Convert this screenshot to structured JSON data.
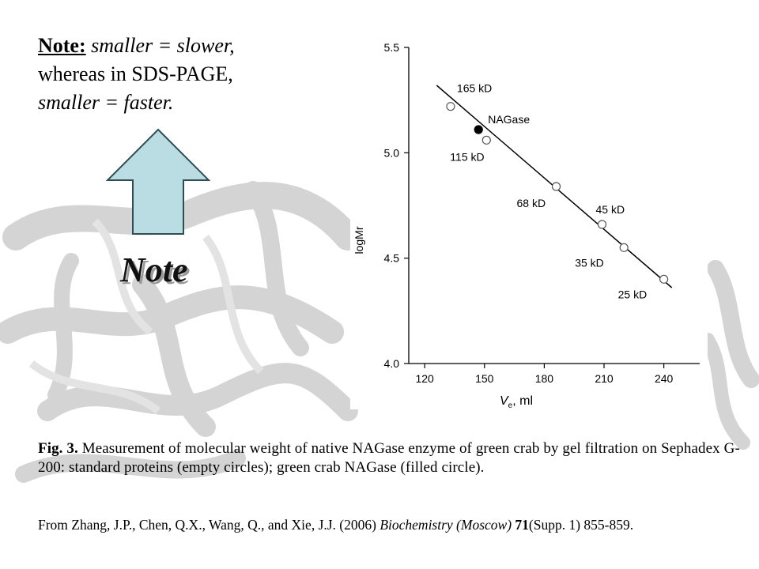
{
  "note": {
    "lead": "Note:",
    "line1": " smaller = slower,",
    "line2": "whereas in SDS-PAGE,",
    "line3": "smaller = faster."
  },
  "note_label": "Note",
  "colors": {
    "arrow_fill": "#b9dde3",
    "arrow_stroke": "#2e4e52",
    "background_watermark": "#d2d2d2"
  },
  "chart_data": {
    "type": "scatter",
    "xlabel_main": "V",
    "xlabel_sub": "e",
    "xlabel_unit": ", ml",
    "ylabel": "logMr",
    "xlim": [
      112,
      258
    ],
    "ylim": [
      4.0,
      5.5
    ],
    "x_ticks": [
      120,
      150,
      180,
      210,
      240
    ],
    "y_ticks": [
      4.0,
      4.5,
      5.0,
      5.5
    ],
    "y_tick_labels": [
      "4.0",
      "4.5",
      "5.0",
      "5.5"
    ],
    "series": [
      {
        "marker": "open-circle",
        "points": [
          {
            "x": 133,
            "y": 5.22,
            "label": "165 kD"
          },
          {
            "x": 151,
            "y": 5.06,
            "label": "115 kD"
          },
          {
            "x": 186,
            "y": 4.84,
            "label": "68 kD"
          },
          {
            "x": 209,
            "y": 4.66,
            "label": "45 kD"
          },
          {
            "x": 220,
            "y": 4.55,
            "label": "35 kD"
          },
          {
            "x": 240,
            "y": 4.4,
            "label": "25 kD"
          }
        ]
      },
      {
        "marker": "filled-circle",
        "points": [
          {
            "x": 147,
            "y": 5.11,
            "label": "NAGase"
          }
        ]
      }
    ],
    "fit_line": {
      "x": [
        126,
        244
      ],
      "y": [
        5.32,
        4.36
      ]
    }
  },
  "caption": {
    "fig_label": "Fig. 3.",
    "text": " Measurement of molecular weight of native NAGase enzyme of green crab by gel filtration on Sephadex G-200: standard proteins (empty circles); green crab NAGase (filled circle)."
  },
  "citation": {
    "prefix": "From Zhang, J.P., Chen, Q.X., Wang, Q., and Xie, J.J. (2006) ",
    "journal": "Biochemistry (Moscow)",
    "volume": "71",
    "suffix": "(Supp. 1) 855-859."
  }
}
